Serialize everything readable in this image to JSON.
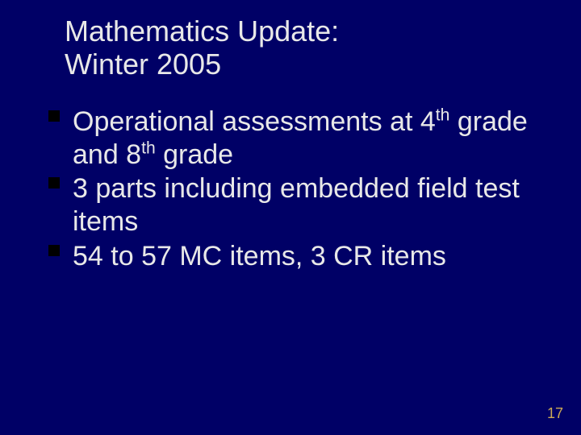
{
  "background_color": "#000066",
  "text_color": "#e8e8e8",
  "bullet_color": "#000000",
  "page_number_color": "#ccaa55",
  "title": {
    "line1": "Mathematics Update:",
    "line2": "Winter 2005",
    "fontsize": 36
  },
  "bullets": {
    "fontsize": 34,
    "item1_pre": "Operational assessments at 4",
    "item1_sup1": "th",
    "item1_mid": " grade and 8",
    "item1_sup2": "th",
    "item1_post": " grade",
    "item2": "3 parts including embedded field test items",
    "item3": "54 to 57 MC items, 3 CR items"
  },
  "page_number": "17"
}
